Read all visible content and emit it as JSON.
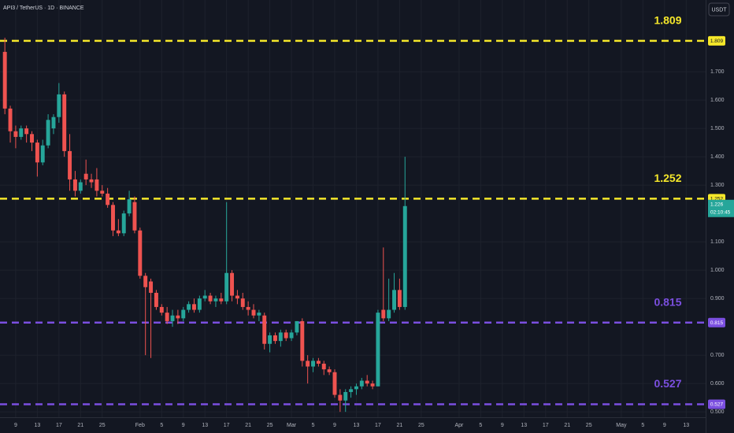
{
  "header": {
    "symbol": "API3 / TetherUS · 1D · BINANCE",
    "currency_button": "USDT"
  },
  "chart_data": {
    "type": "candlestick",
    "up_color": "#26a69a",
    "down_color": "#ef5350",
    "grid": true,
    "x": [
      7,
      8,
      9,
      10,
      11,
      12,
      13,
      14,
      15,
      16,
      17,
      18,
      19,
      20,
      21,
      22,
      23,
      24,
      25,
      26,
      27,
      28,
      29,
      30,
      31,
      32,
      33,
      34,
      35,
      36,
      37,
      38,
      39,
      40,
      41,
      42,
      43,
      44,
      45,
      46,
      47,
      48,
      49,
      50,
      51,
      52,
      53,
      54,
      55,
      56,
      57,
      58,
      59,
      60,
      61,
      62,
      63,
      64,
      65,
      66,
      67,
      68,
      69,
      70,
      71,
      72,
      73,
      74,
      75,
      76,
      77,
      78,
      79,
      80,
      81
    ],
    "open": [
      1.77,
      1.57,
      1.49,
      1.47,
      1.5,
      1.48,
      1.45,
      1.38,
      1.44,
      1.5,
      1.54,
      1.62,
      1.42,
      1.32,
      1.28,
      1.34,
      1.32,
      1.32,
      1.28,
      1.27,
      1.23,
      1.14,
      1.13,
      1.2,
      1.24,
      1.14,
      0.98,
      0.96,
      0.92,
      0.87,
      0.85,
      0.82,
      0.84,
      0.83,
      0.86,
      0.88,
      0.86,
      0.9,
      0.91,
      0.89,
      0.9,
      0.89,
      0.99,
      0.91,
      0.9,
      0.87,
      0.86,
      0.84,
      0.84,
      0.74,
      0.77,
      0.75,
      0.78,
      0.76,
      0.78,
      0.82,
      0.68,
      0.66,
      0.68,
      0.67,
      0.65,
      0.64,
      0.56,
      0.54,
      0.57,
      0.58,
      0.59,
      0.61,
      0.6,
      0.59,
      0.86,
      0.83,
      0.86,
      0.93,
      0.87
    ],
    "high": [
      1.82,
      1.58,
      1.51,
      1.51,
      1.51,
      1.49,
      1.46,
      1.46,
      1.55,
      1.55,
      1.66,
      1.63,
      1.48,
      1.35,
      1.32,
      1.39,
      1.34,
      1.36,
      1.3,
      1.29,
      1.24,
      1.18,
      1.21,
      1.28,
      1.26,
      1.15,
      0.99,
      0.97,
      0.93,
      0.88,
      0.87,
      0.86,
      0.86,
      0.87,
      0.89,
      0.9,
      0.91,
      0.93,
      0.92,
      0.91,
      0.92,
      1.24,
      1.0,
      0.93,
      0.92,
      0.89,
      0.88,
      0.86,
      0.85,
      0.78,
      0.78,
      0.79,
      0.79,
      0.79,
      0.82,
      0.83,
      0.7,
      0.69,
      0.69,
      0.68,
      0.66,
      0.65,
      0.58,
      0.58,
      0.59,
      0.6,
      0.62,
      0.63,
      0.61,
      0.86,
      1.08,
      0.97,
      0.99,
      0.97,
      1.4
    ],
    "low": [
      1.55,
      1.45,
      1.43,
      1.46,
      1.45,
      1.42,
      1.33,
      1.37,
      1.43,
      1.48,
      1.52,
      1.4,
      1.28,
      1.26,
      1.27,
      1.3,
      1.29,
      1.26,
      1.26,
      1.22,
      1.12,
      1.12,
      1.12,
      1.19,
      1.13,
      0.97,
      0.7,
      0.69,
      0.86,
      0.84,
      0.81,
      0.8,
      0.81,
      0.82,
      0.85,
      0.85,
      0.85,
      0.89,
      0.88,
      0.87,
      0.88,
      0.88,
      0.89,
      0.88,
      0.86,
      0.84,
      0.83,
      0.82,
      0.72,
      0.71,
      0.74,
      0.73,
      0.75,
      0.75,
      0.77,
      0.66,
      0.6,
      0.64,
      0.66,
      0.63,
      0.63,
      0.55,
      0.5,
      0.5,
      0.55,
      0.56,
      0.58,
      0.59,
      0.58,
      0.59,
      0.82,
      0.82,
      0.85,
      0.86,
      0.86
    ],
    "close": [
      1.57,
      1.49,
      1.47,
      1.5,
      1.48,
      1.45,
      1.38,
      1.44,
      1.53,
      1.54,
      1.62,
      1.42,
      1.32,
      1.28,
      1.31,
      1.32,
      1.31,
      1.28,
      1.27,
      1.23,
      1.14,
      1.13,
      1.2,
      1.25,
      1.14,
      0.98,
      0.94,
      0.92,
      0.87,
      0.85,
      0.82,
      0.84,
      0.83,
      0.86,
      0.88,
      0.86,
      0.9,
      0.91,
      0.89,
      0.9,
      0.89,
      0.99,
      0.91,
      0.9,
      0.87,
      0.86,
      0.84,
      0.85,
      0.74,
      0.77,
      0.75,
      0.78,
      0.76,
      0.78,
      0.82,
      0.68,
      0.66,
      0.68,
      0.67,
      0.65,
      0.64,
      0.56,
      0.54,
      0.57,
      0.58,
      0.59,
      0.61,
      0.6,
      0.59,
      0.85,
      0.83,
      0.86,
      0.93,
      0.87,
      1.226
    ],
    "xlim": [
      6.1,
      136.6
    ],
    "ylim": [
      0.481,
      1.953
    ],
    "xticks": [
      9,
      13,
      17,
      21,
      25,
      {
        "value": 32,
        "label": "Feb"
      },
      {
        "value": 36,
        "label": "5"
      },
      {
        "value": 40,
        "label": "9"
      },
      {
        "value": 44,
        "label": "13"
      },
      {
        "value": 48,
        "label": "17"
      },
      {
        "value": 52,
        "label": "21"
      },
      {
        "value": 56,
        "label": "25"
      },
      {
        "value": 60,
        "label": "Mar"
      },
      {
        "value": 64,
        "label": "5"
      },
      {
        "value": 68,
        "label": "9"
      },
      {
        "value": 72,
        "label": "13"
      },
      {
        "value": 76,
        "label": "17"
      },
      {
        "value": 80,
        "label": "21"
      },
      {
        "value": 84,
        "label": "25"
      },
      {
        "value": 91,
        "label": "Apr"
      },
      {
        "value": 95,
        "label": "5"
      },
      {
        "value": 99,
        "label": "9"
      },
      {
        "value": 103,
        "label": "13"
      },
      {
        "value": 107,
        "label": "17"
      },
      {
        "value": 111,
        "label": "21"
      },
      {
        "value": 115,
        "label": "25"
      },
      {
        "value": 121,
        "label": "May"
      },
      {
        "value": 125,
        "label": "5"
      },
      {
        "value": 129,
        "label": "9"
      },
      {
        "value": 133,
        "label": "13"
      }
    ],
    "yticks": [
      {
        "value": 0.5,
        "label": "0.500"
      },
      {
        "value": 0.6,
        "label": "0.600"
      },
      {
        "value": 0.7,
        "label": "0.700"
      },
      {
        "value": 0.9,
        "label": "0.900"
      },
      {
        "value": 1.0,
        "label": "1.000"
      },
      {
        "value": 1.1,
        "label": "1.100"
      },
      {
        "value": 1.3,
        "label": "1.300"
      },
      {
        "value": 1.4,
        "label": "1.400"
      },
      {
        "value": 1.5,
        "label": "1.500"
      },
      {
        "value": 1.6,
        "label": "1.600"
      },
      {
        "value": 1.7,
        "label": "1.700"
      }
    ],
    "levels": [
      {
        "value": 1.809,
        "color": "#f5e72a"
      },
      {
        "value": 1.252,
        "color": "#f5e72a"
      },
      {
        "value": 0.815,
        "color": "#7b4fe0"
      },
      {
        "value": 0.527,
        "color": "#7b4fe0"
      }
    ],
    "countdown": "02:10:45"
  }
}
